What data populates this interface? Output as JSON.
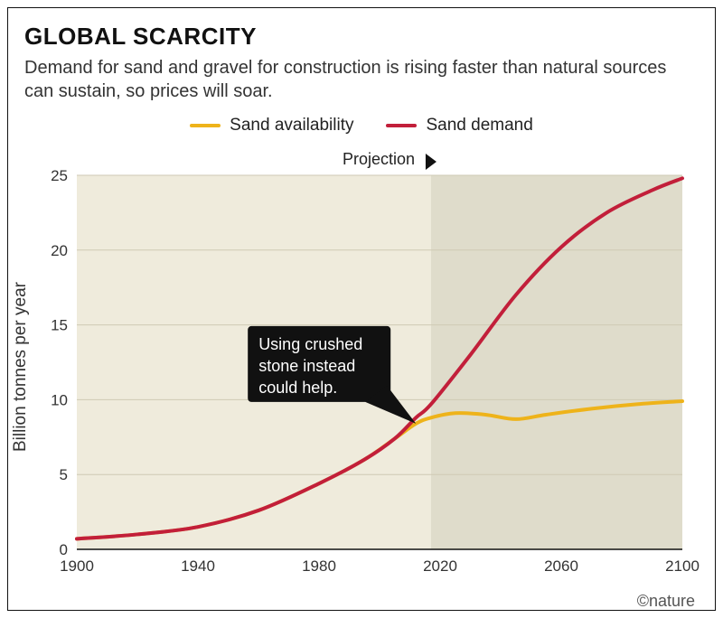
{
  "title": "GLOBAL SCARCITY",
  "subtitle": "Demand for sand and gravel for construction is rising faster than natural sources can sustain, so prices will soar.",
  "credit": "©nature",
  "legend": {
    "availability": {
      "label": "Sand availability",
      "color": "#eeb31a"
    },
    "demand": {
      "label": "Sand demand",
      "color": "#c21f3a"
    }
  },
  "y_axis": {
    "label": "Billion tonnes per year",
    "min": 0,
    "max": 25,
    "step": 5,
    "label_fontsize": 19
  },
  "x_axis": {
    "min": 1900,
    "max": 2100,
    "step": 40
  },
  "projection": {
    "label": "Projection",
    "start_year": 2017
  },
  "colors": {
    "plot_bg_past": "#efebdc",
    "plot_bg_proj": "#dfdccb",
    "grid": "#cfcab4",
    "axis_line": "#111111",
    "tick_text": "#333333",
    "callout_bg": "#111111",
    "callout_text": "#ffffff"
  },
  "line_width": 4,
  "callout": {
    "text": [
      "Using crushed",
      "stone instead",
      "could help."
    ],
    "anchor_year": 2012,
    "anchor_value": 8.4
  },
  "series": {
    "availability": [
      {
        "x": 1900,
        "y": 0.7
      },
      {
        "x": 1920,
        "y": 1.0
      },
      {
        "x": 1940,
        "y": 1.5
      },
      {
        "x": 1960,
        "y": 2.6
      },
      {
        "x": 1980,
        "y": 4.4
      },
      {
        "x": 1995,
        "y": 6.0
      },
      {
        "x": 2005,
        "y": 7.4
      },
      {
        "x": 2012,
        "y": 8.4
      },
      {
        "x": 2017,
        "y": 8.8
      },
      {
        "x": 2025,
        "y": 9.1
      },
      {
        "x": 2035,
        "y": 9.0
      },
      {
        "x": 2045,
        "y": 8.7
      },
      {
        "x": 2055,
        "y": 9.0
      },
      {
        "x": 2070,
        "y": 9.4
      },
      {
        "x": 2085,
        "y": 9.7
      },
      {
        "x": 2100,
        "y": 9.9
      }
    ],
    "demand": [
      {
        "x": 1900,
        "y": 0.7
      },
      {
        "x": 1920,
        "y": 1.0
      },
      {
        "x": 1940,
        "y": 1.5
      },
      {
        "x": 1960,
        "y": 2.6
      },
      {
        "x": 1980,
        "y": 4.4
      },
      {
        "x": 1995,
        "y": 6.0
      },
      {
        "x": 2005,
        "y": 7.4
      },
      {
        "x": 2012,
        "y": 8.8
      },
      {
        "x": 2017,
        "y": 9.7
      },
      {
        "x": 2030,
        "y": 13.0
      },
      {
        "x": 2045,
        "y": 17.0
      },
      {
        "x": 2060,
        "y": 20.2
      },
      {
        "x": 2075,
        "y": 22.5
      },
      {
        "x": 2090,
        "y": 24.0
      },
      {
        "x": 2100,
        "y": 24.8
      }
    ]
  }
}
